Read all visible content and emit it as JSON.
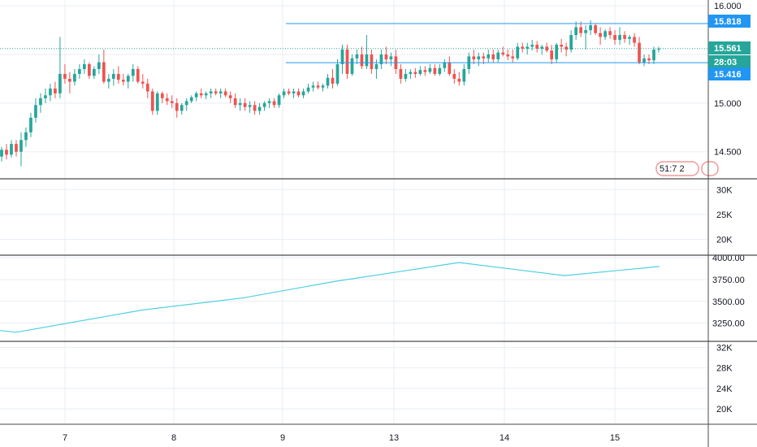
{
  "chart_data": [
    {
      "type": "candlestick",
      "pane": "price",
      "y_ticks": [
        "16.000",
        "15.000",
        "14.500"
      ],
      "ylim": [
        14.23,
        16.06
      ],
      "x_ticks": [
        "7",
        "8",
        "9",
        "13",
        "14",
        "15"
      ],
      "candles": [
        [
          14.45,
          14.55,
          14.4,
          14.52
        ],
        [
          14.52,
          14.58,
          14.42,
          14.47
        ],
        [
          14.47,
          14.62,
          14.44,
          14.58
        ],
        [
          14.58,
          14.62,
          14.45,
          14.5
        ],
        [
          14.5,
          14.7,
          14.35,
          14.62
        ],
        [
          14.62,
          14.75,
          14.55,
          14.7
        ],
        [
          14.7,
          14.9,
          14.65,
          14.85
        ],
        [
          14.85,
          15.05,
          14.8,
          14.98
        ],
        [
          14.98,
          15.1,
          14.9,
          15.05
        ],
        [
          15.05,
          15.15,
          15.0,
          15.08
        ],
        [
          15.08,
          15.2,
          15.02,
          15.15
        ],
        [
          15.15,
          15.22,
          15.05,
          15.1
        ],
        [
          15.1,
          15.68,
          15.05,
          15.3
        ],
        [
          15.3,
          15.4,
          15.2,
          15.25
        ],
        [
          15.25,
          15.32,
          15.1,
          15.22
        ],
        [
          15.22,
          15.35,
          15.18,
          15.3
        ],
        [
          15.3,
          15.4,
          15.25,
          15.35
        ],
        [
          15.35,
          15.45,
          15.3,
          15.4
        ],
        [
          15.4,
          15.42,
          15.25,
          15.28
        ],
        [
          15.28,
          15.38,
          15.25,
          15.35
        ],
        [
          15.35,
          15.5,
          15.3,
          15.42
        ],
        [
          15.42,
          15.55,
          15.2,
          15.22
        ],
        [
          15.22,
          15.3,
          15.15,
          15.25
        ],
        [
          15.25,
          15.35,
          15.18,
          15.3
        ],
        [
          15.3,
          15.38,
          15.2,
          15.24
        ],
        [
          15.24,
          15.3,
          15.18,
          15.22
        ],
        [
          15.22,
          15.3,
          15.15,
          15.28
        ],
        [
          15.28,
          15.4,
          15.22,
          15.35
        ],
        [
          15.35,
          15.38,
          15.2,
          15.22
        ],
        [
          15.22,
          15.3,
          15.15,
          15.2
        ],
        [
          15.2,
          15.25,
          15.05,
          15.12
        ],
        [
          15.12,
          15.15,
          14.88,
          14.92
        ],
        [
          14.92,
          15.12,
          14.88,
          15.1
        ],
        [
          15.1,
          15.12,
          15.0,
          15.05
        ],
        [
          15.05,
          15.1,
          14.98,
          15.02
        ],
        [
          15.02,
          15.08,
          14.95,
          15.0
        ],
        [
          15.0,
          15.05,
          14.85,
          14.92
        ],
        [
          14.92,
          15.0,
          14.88,
          14.98
        ],
        [
          14.98,
          15.05,
          14.92,
          15.02
        ],
        [
          15.02,
          15.08,
          15.0,
          15.06
        ],
        [
          15.06,
          15.12,
          15.02,
          15.1
        ],
        [
          15.1,
          15.15,
          15.05,
          15.08
        ],
        [
          15.08,
          15.12,
          15.04,
          15.1
        ],
        [
          15.1,
          15.15,
          15.05,
          15.12
        ],
        [
          15.12,
          15.15,
          15.08,
          15.1
        ],
        [
          15.1,
          15.15,
          15.05,
          15.12
        ],
        [
          15.12,
          15.15,
          15.06,
          15.08
        ],
        [
          15.08,
          15.12,
          15.0,
          15.05
        ],
        [
          15.05,
          15.1,
          14.95,
          14.98
        ],
        [
          14.98,
          15.05,
          14.92,
          15.0
        ],
        [
          15.0,
          15.05,
          14.92,
          14.96
        ],
        [
          14.96,
          15.02,
          14.9,
          14.98
        ],
        [
          14.98,
          15.02,
          14.88,
          14.92
        ],
        [
          14.92,
          15.0,
          14.88,
          14.96
        ],
        [
          14.96,
          15.02,
          14.92,
          15.0
        ],
        [
          15.0,
          15.05,
          14.95,
          15.02
        ],
        [
          15.02,
          15.05,
          14.95,
          14.98
        ],
        [
          14.98,
          15.1,
          14.95,
          15.08
        ],
        [
          15.08,
          15.15,
          15.05,
          15.12
        ],
        [
          15.12,
          15.15,
          15.08,
          15.1
        ],
        [
          15.1,
          15.15,
          15.05,
          15.12
        ],
        [
          15.12,
          15.15,
          15.06,
          15.08
        ],
        [
          15.08,
          15.15,
          15.05,
          15.12
        ],
        [
          15.12,
          15.2,
          15.1,
          15.16
        ],
        [
          15.16,
          15.22,
          15.12,
          15.18
        ],
        [
          15.18,
          15.22,
          15.14,
          15.16
        ],
        [
          15.16,
          15.2,
          15.12,
          15.18
        ],
        [
          15.18,
          15.3,
          15.15,
          15.26
        ],
        [
          15.26,
          15.35,
          15.15,
          15.2
        ],
        [
          15.2,
          15.45,
          15.18,
          15.4
        ],
        [
          15.4,
          15.6,
          15.3,
          15.55
        ],
        [
          15.55,
          15.6,
          15.25,
          15.3
        ],
        [
          15.3,
          15.5,
          15.28,
          15.46
        ],
        [
          15.46,
          15.55,
          15.4,
          15.5
        ],
        [
          15.5,
          15.58,
          15.35,
          15.38
        ],
        [
          15.38,
          15.7,
          15.35,
          15.5
        ],
        [
          15.5,
          15.55,
          15.3,
          15.35
        ],
        [
          15.35,
          15.45,
          15.25,
          15.4
        ],
        [
          15.4,
          15.55,
          15.35,
          15.5
        ],
        [
          15.5,
          15.58,
          15.4,
          15.45
        ],
        [
          15.45,
          15.52,
          15.38,
          15.48
        ],
        [
          15.48,
          15.55,
          15.3,
          15.35
        ],
        [
          15.35,
          15.4,
          15.2,
          15.25
        ],
        [
          15.25,
          15.35,
          15.22,
          15.3
        ],
        [
          15.3,
          15.35,
          15.25,
          15.32
        ],
        [
          15.32,
          15.36,
          15.26,
          15.3
        ],
        [
          15.3,
          15.38,
          15.28,
          15.34
        ],
        [
          15.34,
          15.38,
          15.28,
          15.32
        ],
        [
          15.32,
          15.4,
          15.3,
          15.36
        ],
        [
          15.36,
          15.4,
          15.28,
          15.3
        ],
        [
          15.3,
          15.4,
          15.28,
          15.36
        ],
        [
          15.36,
          15.45,
          15.32,
          15.42
        ],
        [
          15.42,
          15.48,
          15.28,
          15.3
        ],
        [
          15.3,
          15.35,
          15.2,
          15.25
        ],
        [
          15.25,
          15.32,
          15.18,
          15.22
        ],
        [
          15.22,
          15.4,
          15.18,
          15.35
        ],
        [
          15.35,
          15.52,
          15.3,
          15.48
        ],
        [
          15.48,
          15.55,
          15.4,
          15.45
        ],
        [
          15.45,
          15.52,
          15.38,
          15.48
        ],
        [
          15.48,
          15.52,
          15.4,
          15.46
        ],
        [
          15.46,
          15.55,
          15.42,
          15.5
        ],
        [
          15.5,
          15.55,
          15.42,
          15.45
        ],
        [
          15.45,
          15.55,
          15.42,
          15.52
        ],
        [
          15.52,
          15.58,
          15.48,
          15.5
        ],
        [
          15.5,
          15.55,
          15.44,
          15.48
        ],
        [
          15.48,
          15.55,
          15.42,
          15.46
        ],
        [
          15.46,
          15.62,
          15.44,
          15.58
        ],
        [
          15.58,
          15.62,
          15.52,
          15.56
        ],
        [
          15.56,
          15.62,
          15.5,
          15.58
        ],
        [
          15.58,
          15.65,
          15.54,
          15.6
        ],
        [
          15.6,
          15.64,
          15.52,
          15.56
        ],
        [
          15.56,
          15.6,
          15.5,
          15.58
        ],
        [
          15.58,
          15.62,
          15.52,
          15.54
        ],
        [
          15.54,
          15.6,
          15.4,
          15.45
        ],
        [
          15.45,
          15.62,
          15.42,
          15.6
        ],
        [
          15.6,
          15.66,
          15.52,
          15.58
        ],
        [
          15.58,
          15.62,
          15.48,
          15.55
        ],
        [
          15.55,
          15.75,
          15.52,
          15.7
        ],
        [
          15.7,
          15.84,
          15.65,
          15.78
        ],
        [
          15.78,
          15.84,
          15.68,
          15.72
        ],
        [
          15.72,
          15.8,
          15.55,
          15.75
        ],
        [
          15.75,
          15.85,
          15.7,
          15.8
        ],
        [
          15.8,
          15.82,
          15.7,
          15.72
        ],
        [
          15.72,
          15.78,
          15.6,
          15.68
        ],
        [
          15.68,
          15.76,
          15.65,
          15.74
        ],
        [
          15.74,
          15.78,
          15.66,
          15.7
        ],
        [
          15.7,
          15.75,
          15.6,
          15.65
        ],
        [
          15.65,
          15.78,
          15.6,
          15.7
        ],
        [
          15.7,
          15.74,
          15.62,
          15.66
        ],
        [
          15.66,
          15.7,
          15.6,
          15.68
        ],
        [
          15.68,
          15.72,
          15.58,
          15.62
        ],
        [
          15.62,
          15.68,
          15.4,
          15.42
        ],
        [
          15.42,
          15.5,
          15.38,
          15.46
        ],
        [
          15.46,
          15.5,
          15.4,
          15.44
        ],
        [
          15.44,
          15.58,
          15.4,
          15.55
        ],
        [
          15.55,
          15.58,
          15.52,
          15.56
        ]
      ],
      "horizontal_lines": [
        15.818,
        15.416
      ],
      "current_price_line": 15.561,
      "badges": [
        {
          "text": "15.818",
          "value": 15.818,
          "color": "#2196f3"
        },
        {
          "text": "15.561",
          "value": 15.561,
          "color": "#26a69a"
        },
        {
          "text": "28:03",
          "value": 15.49,
          "color": "#26a69a"
        },
        {
          "text": "15.416",
          "value": 15.416,
          "color": "#2196f3"
        }
      ],
      "indicator_label": "51:7 2",
      "colors": {
        "up": "#26a69a",
        "down": "#ef5350",
        "level": "#2196f3"
      }
    },
    {
      "type": "bar",
      "pane": "volume",
      "y_ticks": [
        "30K",
        "25K",
        "20K"
      ],
      "ylim": [
        17000,
        32000
      ]
    },
    {
      "type": "line",
      "pane": "indicator",
      "y_ticks": [
        "4000.00",
        "3750.00",
        "3500.00",
        "3250.00"
      ],
      "ylim": [
        3050,
        4020
      ],
      "x": [
        0,
        20,
        175,
        300,
        410,
        565,
        695,
        812
      ],
      "y": [
        3165,
        3145,
        3400,
        3540,
        3725,
        3945,
        3795,
        3900
      ],
      "color": "#4dd0e1"
    },
    {
      "type": "bar",
      "pane": "volume2",
      "y_ticks": [
        "32K",
        "28K",
        "24K",
        "20K"
      ],
      "ylim": [
        17000,
        33000
      ]
    }
  ]
}
